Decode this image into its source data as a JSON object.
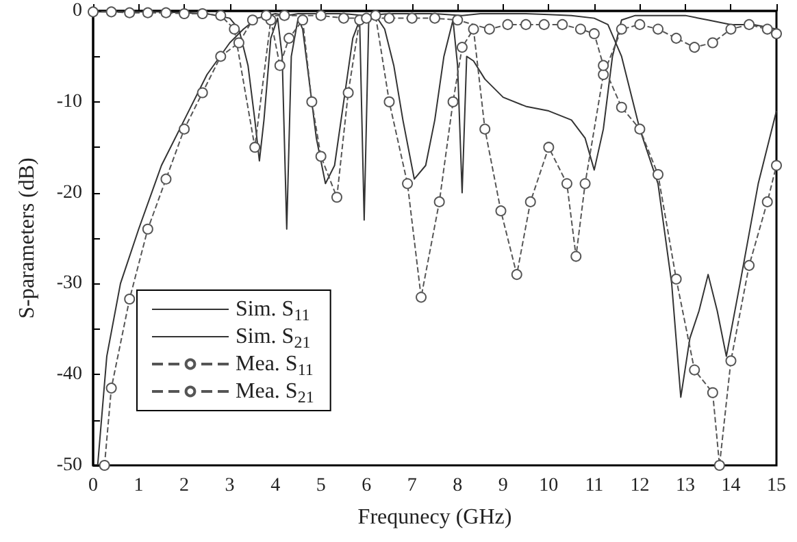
{
  "chart_data": {
    "type": "line",
    "xlabel": "Frequnecy (GHz)",
    "ylabel": "S-parameters (dB)",
    "xlim": [
      0,
      15
    ],
    "xticks": [
      0,
      1,
      2,
      3,
      4,
      5,
      6,
      7,
      8,
      9,
      10,
      11,
      12,
      13,
      14,
      15
    ],
    "ylim": [
      -50,
      0
    ],
    "yticks": [
      -50,
      {
        "value": -45,
        "label": null
      },
      -40,
      {
        "value": -35,
        "label": null
      },
      -30,
      {
        "value": -25,
        "label": null
      },
      -20,
      {
        "value": -15,
        "label": null
      },
      -10,
      {
        "value": -5,
        "label": null
      },
      0
    ],
    "grid": false,
    "legend": "bottom left",
    "series": [
      {
        "name": "Sim. S$_{11}$",
        "color": "#333333",
        "marker": "none",
        "line_style": "solid",
        "x": [
          0,
          0.5,
          1,
          1.5,
          2,
          2.5,
          3,
          3.2,
          3.4,
          3.55,
          3.65,
          3.75,
          3.9,
          4.05,
          4.15,
          4.25,
          4.35,
          4.5,
          4.6,
          4.75,
          4.9,
          5.1,
          5.3,
          5.5,
          5.7,
          5.85,
          5.95,
          6.05,
          6.2,
          6.4,
          6.6,
          6.8,
          7.05,
          7.3,
          7.5,
          7.7,
          7.9,
          8.0,
          8.1,
          8.2,
          8.35,
          8.6,
          9,
          9.5,
          10,
          10.5,
          10.8,
          11.0,
          11.2,
          11.4,
          11.6,
          11.9,
          12.3,
          13,
          13.5,
          14,
          14.5,
          15
        ],
        "values": [
          -0.1,
          -0.1,
          -0.1,
          -0.1,
          -0.2,
          -0.3,
          -0.8,
          -2,
          -6,
          -12,
          -16.5,
          -12,
          -3,
          -0.8,
          -5,
          -24,
          -5,
          -0.8,
          -2,
          -8,
          -14,
          -19,
          -17,
          -10,
          -3,
          -1,
          -23,
          -1,
          -0.5,
          -2,
          -6,
          -12,
          -18.5,
          -17,
          -12,
          -5,
          -1,
          -6,
          -20,
          -5,
          -5.5,
          -7.5,
          -9.5,
          -10.5,
          -11,
          -12,
          -14,
          -17.5,
          -13,
          -5,
          -1,
          -0.5,
          -0.5,
          -0.5,
          -1,
          -1.5,
          -1.5,
          -2
        ]
      },
      {
        "name": "Sim. S$_{21}$",
        "color": "#333333",
        "marker": "none",
        "line_style": "solid",
        "x": [
          0.1,
          0.3,
          0.6,
          1,
          1.5,
          2,
          2.5,
          3,
          3.3,
          3.6,
          4,
          4.25,
          4.5,
          5,
          5.5,
          5.95,
          6.5,
          7,
          7.5,
          8.1,
          8.5,
          9,
          9.5,
          10,
          10.5,
          11,
          11.3,
          11.6,
          12,
          12.4,
          12.7,
          12.9,
          13.1,
          13.3,
          13.5,
          13.7,
          13.9,
          14.2,
          14.6,
          15
        ],
        "values": [
          -50,
          -38,
          -30,
          -24,
          -17,
          -12,
          -7,
          -3.5,
          -2,
          -0.8,
          -0.3,
          -0.5,
          -0.3,
          -0.3,
          -0.3,
          -0.5,
          -0.3,
          -0.3,
          -0.3,
          -0.5,
          -0.3,
          -0.3,
          -0.3,
          -0.4,
          -0.5,
          -0.8,
          -1.5,
          -5,
          -13,
          -19,
          -30,
          -42.5,
          -36,
          -33,
          -29,
          -33,
          -38,
          -30,
          -19,
          -11
        ]
      },
      {
        "name": "Mea. S$_{11}$",
        "color": "#555555",
        "marker": "circle",
        "line_style": "dashed",
        "x": [
          0,
          0.4,
          0.8,
          1.2,
          1.6,
          2,
          2.4,
          2.8,
          3.1,
          3.55,
          3.9,
          4.1,
          4.3,
          4.6,
          4.8,
          5.0,
          5.35,
          5.6,
          5.85,
          6.2,
          6.5,
          6.9,
          7.2,
          7.6,
          7.9,
          8.1,
          8.35,
          8.6,
          8.95,
          9.3,
          9.6,
          10,
          10.4,
          10.6,
          10.8,
          11.2,
          11.6,
          12,
          12.4,
          12.8,
          13.2,
          13.6,
          14.0,
          14.4,
          14.8,
          15
        ],
        "values": [
          -0.1,
          -0.1,
          -0.2,
          -0.2,
          -0.2,
          -0.3,
          -0.3,
          -0.5,
          -2,
          -15,
          -1,
          -6,
          -3,
          -1,
          -10,
          -16,
          -20.5,
          -9,
          -1,
          -0.5,
          -10,
          -19,
          -31.5,
          -21,
          -10,
          -4,
          -2,
          -13,
          -22,
          -29,
          -21,
          -15,
          -19,
          -27,
          -19,
          -7,
          -2,
          -1.5,
          -2,
          -3,
          -4,
          -3.5,
          -2,
          -1.5,
          -2,
          -2.5
        ]
      },
      {
        "name": "Mea. S$_{21}$",
        "color": "#555555",
        "marker": "circle",
        "line_style": "dashed",
        "x": [
          0.25,
          0.4,
          0.8,
          1.2,
          1.6,
          2.0,
          2.4,
          2.8,
          3.2,
          3.5,
          3.8,
          4.2,
          5,
          5.5,
          6,
          6.5,
          7,
          7.5,
          8,
          8.7,
          9.1,
          9.5,
          9.9,
          10.3,
          10.7,
          11.0,
          11.2,
          11.6,
          12,
          12.4,
          12.8,
          13.2,
          13.6,
          13.75,
          14.0,
          14.4,
          14.8,
          15
        ],
        "values": [
          -50,
          -41.5,
          -31.7,
          -24,
          -18.5,
          -13,
          -9,
          -5,
          -3.5,
          -1,
          -0.5,
          -0.5,
          -0.5,
          -0.8,
          -0.8,
          -0.8,
          -0.8,
          -0.8,
          -1,
          -2,
          -1.5,
          -1.5,
          -1.5,
          -1.5,
          -2,
          -2.5,
          -6,
          -10.6,
          -13,
          -18,
          -29.5,
          -39.5,
          -42,
          -50,
          -38.5,
          -28,
          -21,
          -17
        ]
      }
    ]
  }
}
